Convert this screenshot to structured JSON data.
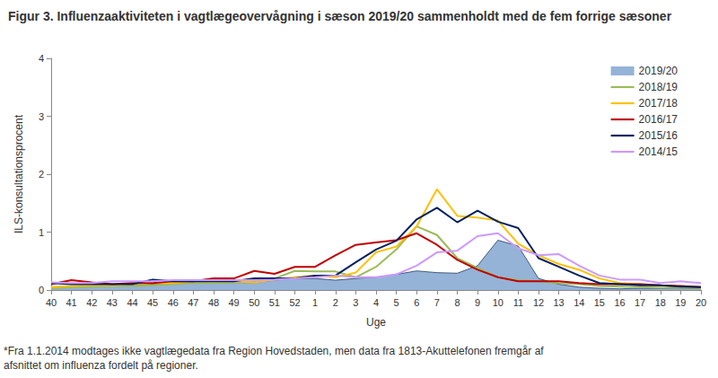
{
  "chart_data": {
    "type": "line",
    "title": "Figur 3. Influenzaaktiviteten i vagtlægeovervågning i sæson 2019/20 sammenholdt med de fem forrige sæsoner",
    "x_label": "Uge",
    "y_label": "ILS-konsultationsprocent",
    "annotations": [
      "*Fra 1.1.2014 modtages ikke vagtlægedata fra Region Hovedstaden, men data fra 1813-Akuttelefonen fremgår af afsnittet om influenza fordelt på regioner."
    ],
    "categories": [
      "40",
      "41",
      "42",
      "43",
      "44",
      "45",
      "46",
      "47",
      "48",
      "49",
      "50",
      "51",
      "52",
      "1",
      "2",
      "3",
      "4",
      "5",
      "6",
      "7",
      "8",
      "9",
      "10",
      "11",
      "12",
      "13",
      "14",
      "15",
      "16",
      "17",
      "18",
      "19",
      "20"
    ],
    "ylim": [
      0,
      4
    ],
    "yticks": [
      0,
      1,
      2,
      3,
      4
    ],
    "grid": false,
    "legend": "right",
    "series": [
      {
        "name": "2019/20",
        "type": "area",
        "color": "#95b3d7",
        "values": [
          0.05,
          0.07,
          0.08,
          0.08,
          0.09,
          0.1,
          0.12,
          0.13,
          0.12,
          0.13,
          0.13,
          0.17,
          0.2,
          0.2,
          0.17,
          0.2,
          0.22,
          0.27,
          0.33,
          0.3,
          0.29,
          0.42,
          0.86,
          0.76,
          0.2,
          0.1,
          0.05,
          0.03,
          0.02,
          0.03,
          0.03,
          0.03,
          0.02
        ]
      },
      {
        "name": "2018/19",
        "type": "line",
        "color": "#9bbb59",
        "values": [
          0.03,
          0.05,
          0.06,
          0.07,
          0.07,
          0.08,
          0.1,
          0.12,
          0.12,
          0.13,
          0.15,
          0.2,
          0.33,
          0.32,
          0.32,
          0.22,
          0.4,
          0.7,
          1.1,
          0.95,
          0.55,
          0.38,
          0.22,
          0.17,
          0.15,
          0.12,
          0.1,
          0.07,
          0.06,
          0.05,
          0.04,
          0.04,
          0.03
        ]
      },
      {
        "name": "2017/18",
        "type": "line",
        "color": "#ffc000",
        "values": [
          0.05,
          0.07,
          0.08,
          0.08,
          0.1,
          0.12,
          0.12,
          0.15,
          0.15,
          0.15,
          0.13,
          0.18,
          0.22,
          0.25,
          0.22,
          0.3,
          0.65,
          0.75,
          1.1,
          1.74,
          1.28,
          1.25,
          1.2,
          0.8,
          0.6,
          0.45,
          0.35,
          0.2,
          0.12,
          0.1,
          0.08,
          0.06,
          0.05
        ]
      },
      {
        "name": "2016/17",
        "type": "line",
        "color": "#c00000",
        "values": [
          0.1,
          0.17,
          0.13,
          0.1,
          0.12,
          0.12,
          0.15,
          0.15,
          0.2,
          0.2,
          0.33,
          0.28,
          0.4,
          0.4,
          0.6,
          0.78,
          0.82,
          0.86,
          0.98,
          0.78,
          0.52,
          0.35,
          0.22,
          0.15,
          0.15,
          0.15,
          0.12,
          0.1,
          0.1,
          0.1,
          0.08,
          0.07,
          0.05
        ]
      },
      {
        "name": "2015/16",
        "type": "line",
        "color": "#002060",
        "values": [
          0.12,
          0.1,
          0.1,
          0.1,
          0.1,
          0.18,
          0.15,
          0.15,
          0.15,
          0.15,
          0.2,
          0.2,
          0.2,
          0.25,
          0.25,
          0.48,
          0.7,
          0.85,
          1.22,
          1.42,
          1.17,
          1.37,
          1.18,
          1.07,
          0.55,
          0.4,
          0.25,
          0.12,
          0.1,
          0.08,
          0.08,
          0.06,
          0.05
        ]
      },
      {
        "name": "2014/15",
        "type": "line",
        "color": "#cc99ff",
        "values": [
          0.13,
          0.12,
          0.12,
          0.15,
          0.15,
          0.15,
          0.17,
          0.17,
          0.17,
          0.17,
          0.17,
          0.18,
          0.2,
          0.22,
          0.25,
          0.22,
          0.22,
          0.27,
          0.42,
          0.65,
          0.68,
          0.93,
          0.98,
          0.72,
          0.6,
          0.62,
          0.42,
          0.25,
          0.18,
          0.18,
          0.12,
          0.15,
          0.12
        ]
      }
    ]
  }
}
